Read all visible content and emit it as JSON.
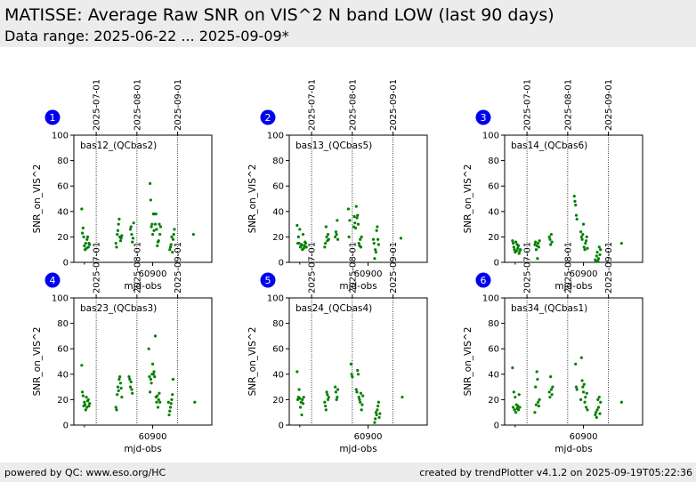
{
  "header": {
    "title": "MATISSE: Average Raw SNR on VIS^2 N band LOW (last 90 days)",
    "subtitle": "Data range: 2025-06-22 ... 2025-09-09*"
  },
  "footer": {
    "left": "powered by QC: www.eso.org/HC",
    "right": "created by trendPlotter v4.1.2 on 2025-09-19T05:22:36"
  },
  "colors": {
    "points": "#008000",
    "badge": "#0000ee",
    "header_bg": "#ececec"
  },
  "chart_data": [
    {
      "type": "scatter",
      "number": "1",
      "label": "bas12_(QCbas2)",
      "xlabel": "mjd-obs",
      "ylabel": "SNR_on_VIS^2",
      "xlim": [
        60840,
        60945
      ],
      "ylim": [
        0,
        100
      ],
      "xticks": [
        60900
      ],
      "yticks": [
        0,
        20,
        40,
        60,
        80,
        100
      ],
      "date_markers": [
        {
          "label": "2025-07-01",
          "mjd": 60857
        },
        {
          "label": "2025-08-01",
          "mjd": 60888
        },
        {
          "label": "2025-09-01",
          "mjd": 60919
        }
      ],
      "x": [
        60846.0,
        60846.5,
        60847.0,
        60847.5,
        60848.0,
        60848.5,
        60849.0,
        60849.5,
        60850.0,
        60850.5,
        60851.0,
        60851.5,
        60852.0,
        60872.0,
        60872.5,
        60873.0,
        60873.5,
        60874.0,
        60874.5,
        60875.0,
        60875.5,
        60876.0,
        60876.5,
        60883.0,
        60883.5,
        60884.0,
        60884.5,
        60885.0,
        60885.5,
        60898.0,
        60898.5,
        60899.0,
        60899.5,
        60900.0,
        60900.5,
        60901.0,
        60901.5,
        60902.0,
        60902.5,
        60903.0,
        60903.5,
        60904.0,
        60904.5,
        60905.0,
        60905.5,
        60906.0,
        60913.0,
        60913.5,
        60914.0,
        60914.5,
        60915.0,
        60915.5,
        60916.0,
        60916.5,
        60931.0
      ],
      "y": [
        42,
        23,
        27,
        20,
        13,
        10,
        15,
        11,
        18,
        20,
        12,
        15,
        14,
        15,
        12,
        22,
        25,
        30,
        34,
        20,
        17,
        19,
        21,
        26,
        28,
        22,
        16,
        19,
        31,
        62,
        49,
        28,
        30,
        22,
        38,
        25,
        38,
        30,
        38,
        26,
        13,
        16,
        17,
        30,
        22,
        28,
        10,
        12,
        14,
        20,
        8,
        18,
        22,
        26,
        22
      ]
    },
    {
      "type": "scatter",
      "number": "2",
      "label": "bas13_(QCbas5)",
      "xlabel": "mjd-obs",
      "ylabel": "SNR_on_VIS^2",
      "xlim": [
        60840,
        60945
      ],
      "ylim": [
        0,
        100
      ],
      "xticks": [
        60900
      ],
      "yticks": [
        0,
        20,
        40,
        60,
        80,
        100
      ],
      "date_markers": [
        {
          "label": "2025-07-01",
          "mjd": 60857
        },
        {
          "label": "2025-08-01",
          "mjd": 60888
        },
        {
          "label": "2025-09-01",
          "mjd": 60919
        }
      ],
      "x": [
        60846.0,
        60846.5,
        60847.0,
        60847.5,
        60848.0,
        60848.5,
        60849.0,
        60849.5,
        60850.0,
        60850.5,
        60851.0,
        60851.5,
        60852.0,
        60852.5,
        60853.0,
        60867.0,
        60867.5,
        60868.0,
        60868.5,
        60869.0,
        60869.5,
        60870.0,
        60875.0,
        60875.5,
        60876.0,
        60876.5,
        60877.0,
        60885.0,
        60885.5,
        60886.0,
        60889.0,
        60889.5,
        60890.0,
        60890.5,
        60891.0,
        60891.5,
        60892.0,
        60892.5,
        60893.0,
        60893.5,
        60894.0,
        60894.5,
        60895.0,
        60904.0,
        60904.5,
        60905.0,
        60905.5,
        60906.0,
        60906.5,
        60907.0,
        60907.5,
        60908.0,
        60925.0
      ],
      "y": [
        29,
        15,
        20,
        15,
        26,
        12,
        13,
        14,
        10,
        22,
        11,
        13,
        16,
        15,
        12,
        12,
        15,
        28,
        20,
        17,
        22,
        18,
        20,
        24,
        22,
        33,
        18,
        42,
        20,
        33,
        28,
        36,
        31,
        27,
        44,
        35,
        37,
        30,
        15,
        13,
        18,
        12,
        20,
        18,
        15,
        3,
        10,
        8,
        25,
        28,
        18,
        14,
        19
      ]
    },
    {
      "type": "scatter",
      "number": "3",
      "label": "bas14_(QCbas6)",
      "xlabel": "mjd-obs",
      "ylabel": "SNR_on_VIS^2",
      "xlim": [
        60840,
        60945
      ],
      "ylim": [
        0,
        100
      ],
      "xticks": [
        60900
      ],
      "yticks": [
        0,
        20,
        40,
        60,
        80,
        100
      ],
      "date_markers": [
        {
          "label": "2025-07-01",
          "mjd": 60857
        },
        {
          "label": "2025-08-01",
          "mjd": 60888
        },
        {
          "label": "2025-09-01",
          "mjd": 60919
        }
      ],
      "x": [
        60846.0,
        60846.5,
        60847.0,
        60847.5,
        60848.0,
        60848.5,
        60849.0,
        60849.5,
        60850.0,
        60850.5,
        60851.0,
        60851.5,
        60852.0,
        60863.0,
        60863.5,
        60864.0,
        60864.5,
        60865.0,
        60865.5,
        60866.0,
        60866.5,
        60874.0,
        60874.5,
        60875.0,
        60875.5,
        60876.0,
        60893.0,
        60893.5,
        60894.0,
        60894.5,
        60895.0,
        60898.0,
        60898.5,
        60899.0,
        60899.5,
        60900.0,
        60900.5,
        60901.0,
        60901.5,
        60902.0,
        60902.5,
        60903.0,
        60909.0,
        60909.5,
        60910.0,
        60910.5,
        60911.0,
        60911.5,
        60912.0,
        60912.5,
        60913.0,
        60929.0
      ],
      "y": [
        17,
        15,
        12,
        10,
        8,
        16,
        9,
        14,
        11,
        13,
        7,
        9,
        10,
        14,
        16,
        10,
        13,
        3,
        15,
        12,
        17,
        20,
        18,
        14,
        22,
        16,
        52,
        48,
        45,
        37,
        34,
        24,
        20,
        18,
        22,
        30,
        12,
        10,
        15,
        17,
        20,
        11,
        2,
        1,
        5,
        8,
        1,
        3,
        12,
        6,
        10,
        15
      ]
    },
    {
      "type": "scatter",
      "number": "4",
      "label": "bas23_(QCbas3)",
      "xlabel": "mjd-obs",
      "ylabel": "SNR_on_VIS^2",
      "xlim": [
        60840,
        60945
      ],
      "ylim": [
        0,
        100
      ],
      "xticks": [
        60900
      ],
      "yticks": [
        0,
        20,
        40,
        60,
        80,
        100
      ],
      "date_markers": [
        {
          "label": "2025-07-01",
          "mjd": 60857
        },
        {
          "label": "2025-08-01",
          "mjd": 60888
        },
        {
          "label": "2025-09-01",
          "mjd": 60919
        }
      ],
      "x": [
        60846.0,
        60846.5,
        60847.0,
        60847.5,
        60848.0,
        60848.5,
        60849.0,
        60849.5,
        60850.0,
        60850.5,
        60851.0,
        60851.5,
        60852.0,
        60872.0,
        60872.5,
        60873.0,
        60873.5,
        60874.0,
        60874.5,
        60875.0,
        60875.5,
        60876.0,
        60876.5,
        60882.0,
        60882.5,
        60883.0,
        60883.5,
        60884.0,
        60884.5,
        60897.0,
        60897.5,
        60898.0,
        60898.5,
        60899.0,
        60899.5,
        60900.0,
        60900.5,
        60901.0,
        60901.5,
        60902.0,
        60902.5,
        60903.0,
        60903.5,
        60904.0,
        60904.5,
        60905.0,
        60905.5,
        60912.0,
        60912.5,
        60913.0,
        60913.5,
        60914.0,
        60914.5,
        60915.0,
        60915.5,
        60932.0
      ],
      "y": [
        47,
        26,
        23,
        15,
        18,
        16,
        12,
        22,
        14,
        19,
        20,
        15,
        17,
        14,
        12,
        24,
        30,
        27,
        36,
        38,
        33,
        29,
        22,
        38,
        36,
        30,
        34,
        28,
        25,
        60,
        38,
        26,
        36,
        33,
        40,
        48,
        40,
        42,
        38,
        70,
        22,
        18,
        23,
        14,
        20,
        25,
        18,
        18,
        8,
        11,
        14,
        17,
        20,
        24,
        36,
        18
      ]
    },
    {
      "type": "scatter",
      "number": "5",
      "label": "bas24_(QCbas4)",
      "xlabel": "mjd-obs",
      "ylabel": "SNR_on_VIS^2",
      "xlim": [
        60840,
        60945
      ],
      "ylim": [
        0,
        100
      ],
      "xticks": [
        60900
      ],
      "yticks": [
        0,
        20,
        40,
        60,
        80,
        100
      ],
      "date_markers": [
        {
          "label": "2025-07-01",
          "mjd": 60857
        },
        {
          "label": "2025-08-01",
          "mjd": 60888
        },
        {
          "label": "2025-09-01",
          "mjd": 60919
        }
      ],
      "x": [
        60846.0,
        60846.5,
        60847.0,
        60847.5,
        60848.0,
        60848.5,
        60849.0,
        60849.5,
        60850.0,
        60850.5,
        60851.0,
        60867.0,
        60867.5,
        60868.0,
        60868.5,
        60869.0,
        60869.5,
        60870.0,
        60875.0,
        60875.5,
        60876.0,
        60876.5,
        60877.0,
        60887.0,
        60887.5,
        60888.0,
        60891.0,
        60891.5,
        60892.0,
        60892.5,
        60893.0,
        60893.5,
        60894.0,
        60894.5,
        60895.0,
        60895.5,
        60896.0,
        60905.0,
        60905.5,
        60906.0,
        60906.5,
        60907.0,
        60907.5,
        60908.0,
        60908.5,
        60909.0,
        60926.0
      ],
      "y": [
        42,
        20,
        22,
        28,
        21,
        14,
        18,
        8,
        20,
        17,
        22,
        18,
        15,
        12,
        26,
        24,
        20,
        22,
        30,
        26,
        20,
        22,
        28,
        48,
        40,
        38,
        28,
        26,
        43,
        40,
        22,
        20,
        18,
        25,
        12,
        16,
        23,
        2,
        5,
        10,
        8,
        12,
        15,
        18,
        6,
        9,
        22
      ]
    },
    {
      "type": "scatter",
      "number": "6",
      "label": "bas34_(QCbas1)",
      "xlabel": "mjd-obs",
      "ylabel": "SNR_on_VIS^2",
      "xlim": [
        60840,
        60945
      ],
      "ylim": [
        0,
        100
      ],
      "xticks": [
        60900
      ],
      "yticks": [
        0,
        20,
        40,
        60,
        80,
        100
      ],
      "date_markers": [
        {
          "label": "2025-07-01",
          "mjd": 60857
        },
        {
          "label": "2025-08-01",
          "mjd": 60888
        },
        {
          "label": "2025-09-01",
          "mjd": 60919
        }
      ],
      "x": [
        60846.0,
        60846.5,
        60847.0,
        60847.5,
        60848.0,
        60848.5,
        60849.0,
        60849.5,
        60850.0,
        60850.5,
        60851.0,
        60851.5,
        60863.0,
        60863.5,
        60864.0,
        60864.5,
        60865.0,
        60865.5,
        60866.0,
        60866.5,
        60874.0,
        60874.5,
        60875.0,
        60875.5,
        60876.0,
        60876.5,
        60894.0,
        60894.5,
        60895.0,
        60898.0,
        60898.5,
        60899.0,
        60899.5,
        60900.0,
        60900.5,
        60901.0,
        60901.5,
        60902.0,
        60902.5,
        60903.0,
        60909.0,
        60909.5,
        60910.0,
        60910.5,
        60911.0,
        60911.5,
        60912.0,
        60912.5,
        60913.0,
        60929.0
      ],
      "y": [
        45,
        14,
        26,
        12,
        22,
        10,
        16,
        13,
        15,
        12,
        24,
        14,
        10,
        30,
        16,
        42,
        36,
        18,
        15,
        20,
        26,
        22,
        38,
        28,
        24,
        30,
        48,
        30,
        28,
        20,
        53,
        35,
        30,
        26,
        32,
        18,
        22,
        14,
        25,
        12,
        8,
        10,
        6,
        12,
        20,
        14,
        22,
        9,
        18,
        18
      ]
    }
  ]
}
